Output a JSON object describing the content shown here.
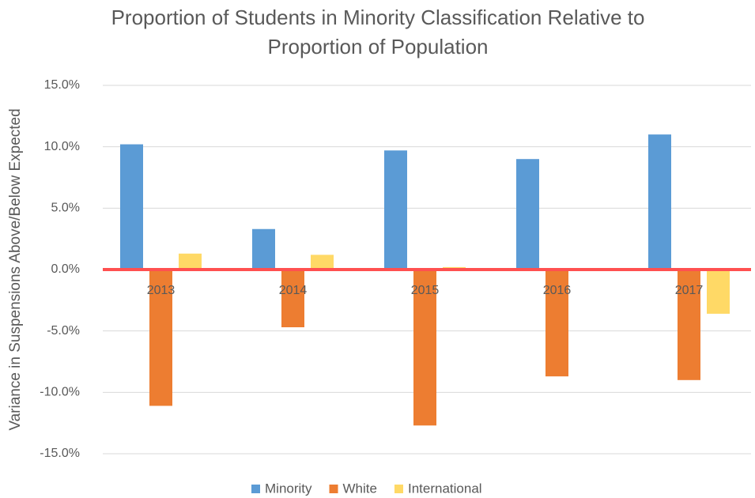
{
  "chart_data": {
    "type": "bar",
    "title": [
      "Proportion of Students in Minority Classification Relative to",
      "Proportion of Population"
    ],
    "y_label": "Variance in Suspensions Above/Below Expected",
    "categories": [
      "2013",
      "2014",
      "2015",
      "2016",
      "2017"
    ],
    "series": [
      {
        "name": "Minority",
        "color": "#5b9bd5",
        "values": [
          10.2,
          3.3,
          9.7,
          9.0,
          11.0
        ]
      },
      {
        "name": "White",
        "color": "#ed7d31",
        "values": [
          -11.1,
          -4.7,
          -12.7,
          -8.7,
          -9.0
        ]
      },
      {
        "name": "International",
        "color": "#ffd966",
        "values": [
          1.3,
          1.2,
          0.2,
          0,
          -3.6
        ]
      }
    ],
    "ylim": [
      -15,
      15
    ],
    "yticks": [
      {
        "value": -15,
        "label": "-15.0%"
      },
      {
        "value": -10,
        "label": "-10.0%"
      },
      {
        "value": -5,
        "label": "-5.0%"
      },
      {
        "value": 0,
        "label": "0.0%"
      },
      {
        "value": 5,
        "label": "5.0%"
      },
      {
        "value": 10,
        "label": "10.0%"
      },
      {
        "value": 15,
        "label": "15.0%"
      }
    ],
    "grid": true,
    "zero_line_color": "#ff5050",
    "legend": "bottom"
  }
}
